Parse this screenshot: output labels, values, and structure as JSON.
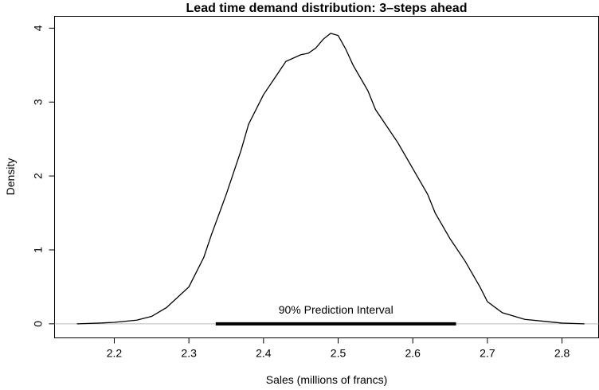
{
  "chart_data": {
    "type": "line",
    "title": "Lead time demand distribution: 3–steps ahead",
    "x_label": "Sales (millions of francs)",
    "y_label": "Density",
    "x": [
      2.15,
      2.18,
      2.2,
      2.23,
      2.25,
      2.27,
      2.3,
      2.32,
      2.33,
      2.35,
      2.37,
      2.38,
      2.4,
      2.42,
      2.43,
      2.45,
      2.46,
      2.47,
      2.48,
      2.49,
      2.5,
      2.51,
      2.52,
      2.54,
      2.55,
      2.57,
      2.58,
      2.6,
      2.62,
      2.63,
      2.65,
      2.67,
      2.69,
      2.7,
      2.72,
      2.75,
      2.78,
      2.8,
      2.83
    ],
    "series": [
      {
        "color": "#000000",
        "values": [
          0,
          0.01,
          0.02,
          0.05,
          0.1,
          0.22,
          0.5,
          0.9,
          1.2,
          1.75,
          2.35,
          2.7,
          3.1,
          3.4,
          3.55,
          3.64,
          3.66,
          3.73,
          3.85,
          3.93,
          3.9,
          3.72,
          3.5,
          3.15,
          2.9,
          2.6,
          2.45,
          2.1,
          1.75,
          1.5,
          1.15,
          0.85,
          0.5,
          0.3,
          0.15,
          0.06,
          0.03,
          0.01,
          0
        ]
      }
    ],
    "xlim": [
      2.12,
      2.849
    ],
    "ylim": [
      -0.19,
      4.16
    ],
    "xticks": [
      2.2,
      2.3,
      2.4,
      2.5,
      2.6,
      2.7,
      2.8
    ],
    "yticks": [
      0,
      1,
      2,
      3,
      4
    ],
    "baseline_color": "#bbbbbb",
    "interval": {
      "label": "90% Prediction Interval",
      "range": [
        2.336,
        2.658
      ]
    }
  }
}
